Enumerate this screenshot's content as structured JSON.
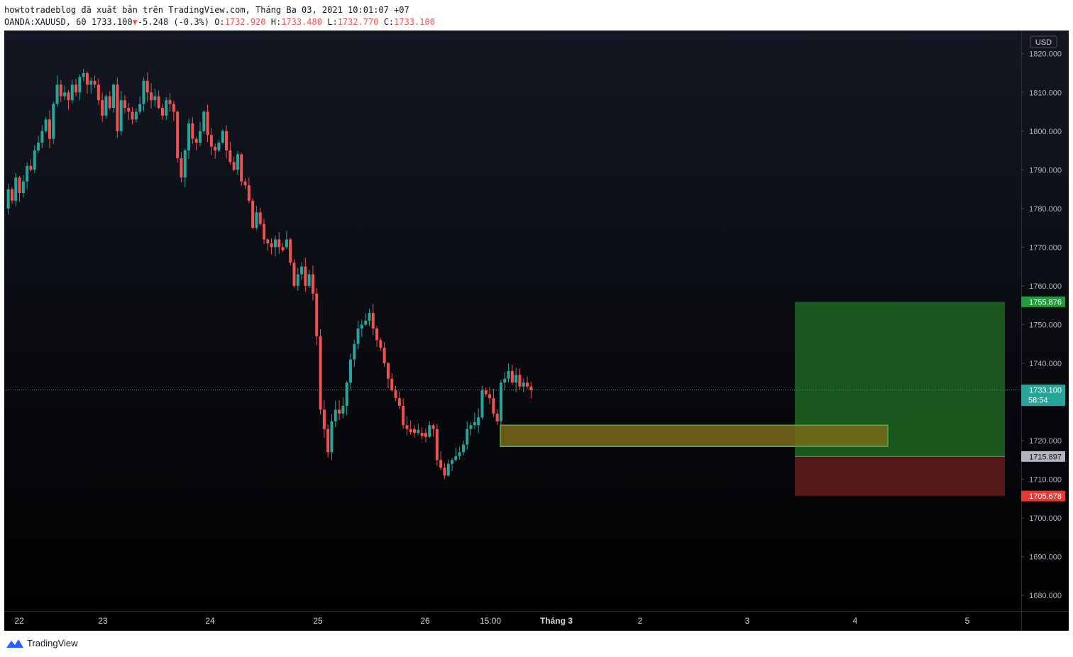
{
  "header": {
    "line1": "howtotradeblog đã xuất bản trên TradingView.com, Tháng Ba 03, 2021 10:01:07 +07",
    "symbol": "OANDA:XAUUSD, 60",
    "last": "1733.100",
    "change_arrow": "▼",
    "change": "-5.248 (-0.3%)",
    "o_label": "O:",
    "o": "1732.920",
    "h_label": "H:",
    "h": "1733.480",
    "l_label": "L:",
    "l": "1732.770",
    "c_label": "C:",
    "c": "1733.100"
  },
  "footer": {
    "brand": "TradingView",
    "logo_icon": "tradingview-logo-icon"
  },
  "colors": {
    "background_top": "#131722",
    "background_bottom": "#000000",
    "up": "#26a69a",
    "down": "#ef5350",
    "zone_fill": "#7a6a1a",
    "zone_border": "#4caf50",
    "target_fill": "#1b5e20",
    "stop_fill": "#5a1a1a"
  },
  "chart_data": {
    "type": "candlestick",
    "currency": "USD",
    "ylim": [
      1676,
      1826
    ],
    "y_ticks": [
      "1820.000",
      "1810.000",
      "1800.000",
      "1790.000",
      "1780.000",
      "1770.000",
      "1760.000",
      "1750.000",
      "1740.000",
      "1730.000",
      "1720.000",
      "1710.000",
      "1700.000",
      "1690.000",
      "1680.000"
    ],
    "x_ticks": [
      "22",
      "23",
      "24",
      "25",
      "26",
      "15:00",
      "Tháng 3",
      "2",
      "3",
      "4",
      "5"
    ],
    "last_price": {
      "label": "1733.100",
      "countdown": "58:54",
      "value": 1733.1
    },
    "position": {
      "target": {
        "value": 1755.876,
        "label": "1755.876"
      },
      "entry": {
        "value": 1715.897,
        "label": "1715.897"
      },
      "stop": {
        "value": 1705.678,
        "label": "1705.678"
      }
    },
    "support_zone": {
      "top": 1724.0,
      "bottom": 1718.5
    },
    "path": [
      1780,
      1785,
      1782,
      1788,
      1784,
      1787,
      1791,
      1790,
      1795,
      1797,
      1800,
      1803,
      1798,
      1807,
      1812,
      1809,
      1810,
      1808,
      1812,
      1810,
      1814,
      1815,
      1812,
      1813,
      1812,
      1808,
      1804,
      1809,
      1806,
      1812,
      1800,
      1808,
      1806,
      1805,
      1803,
      1805,
      1807,
      1813,
      1810,
      1808,
      1809,
      1806,
      1804,
      1808,
      1807,
      1805,
      1793,
      1788,
      1795,
      1802,
      1798,
      1797,
      1800,
      1805,
      1799,
      1796,
      1795,
      1797,
      1800,
      1795,
      1792,
      1790,
      1794,
      1787,
      1786,
      1782,
      1775,
      1779,
      1776,
      1772,
      1771,
      1770,
      1772,
      1770,
      1770,
      1772,
      1766,
      1760,
      1763,
      1765,
      1760,
      1763,
      1758,
      1747,
      1728,
      1723,
      1717,
      1725,
      1728,
      1727,
      1729,
      1735,
      1741,
      1745,
      1749,
      1750,
      1751,
      1753,
      1749,
      1746,
      1744,
      1740,
      1736,
      1733,
      1731,
      1729,
      1724,
      1723,
      1723,
      1722,
      1722,
      1722,
      1721,
      1724,
      1723,
      1715,
      1713,
      1711,
      1714,
      1715,
      1716,
      1717,
      1719,
      1723,
      1724,
      1724,
      1726,
      1733,
      1732,
      1731,
      1727,
      1725,
      1735,
      1736,
      1738,
      1735,
      1737,
      1734,
      1735,
      1734,
      1733
    ]
  }
}
